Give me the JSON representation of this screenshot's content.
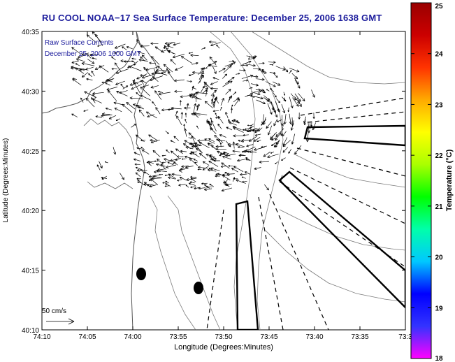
{
  "title": "RU COOL  NOAA−17  Sea Surface Temperature:  December 25, 2006 1638 GMT",
  "map": {
    "overlay_label_line1": "Raw Surface Currents",
    "overlay_label_line2": "December 25, 2006 1600 GMT",
    "x_axis": {
      "label": "Longitude (Degrees:Minutes)",
      "ticks": [
        "74:10",
        "74:05",
        "74:00",
        "73:55",
        "73:50",
        "73:45",
        "73:40",
        "73:35",
        "73:3"
      ]
    },
    "y_axis": {
      "label": "Latitude (Degrees:Minutes)",
      "ticks": [
        "40:35",
        "40:30",
        "40:25",
        "40:20",
        "40:15",
        "40:10"
      ]
    },
    "scale_label": "50 cm/s",
    "colors": {
      "frame": "#000000",
      "contour": "#7a7a7a",
      "title": "#1c1c9c",
      "overlay_text": "#1c1c9c"
    }
  },
  "colorbar": {
    "label": "Temperature (°C)",
    "min": 18,
    "max": 25,
    "ticks": [
      "25",
      "24",
      "23",
      "22",
      "21",
      "20",
      "19",
      "18"
    ],
    "stops": [
      "#ff00ff",
      "#3333ff",
      "#0000ff",
      "#00c8ff",
      "#00ffaa",
      "#00ff00",
      "#aaff00",
      "#ffff00",
      "#ffaa00",
      "#ff3300",
      "#cc0000",
      "#990000"
    ]
  }
}
